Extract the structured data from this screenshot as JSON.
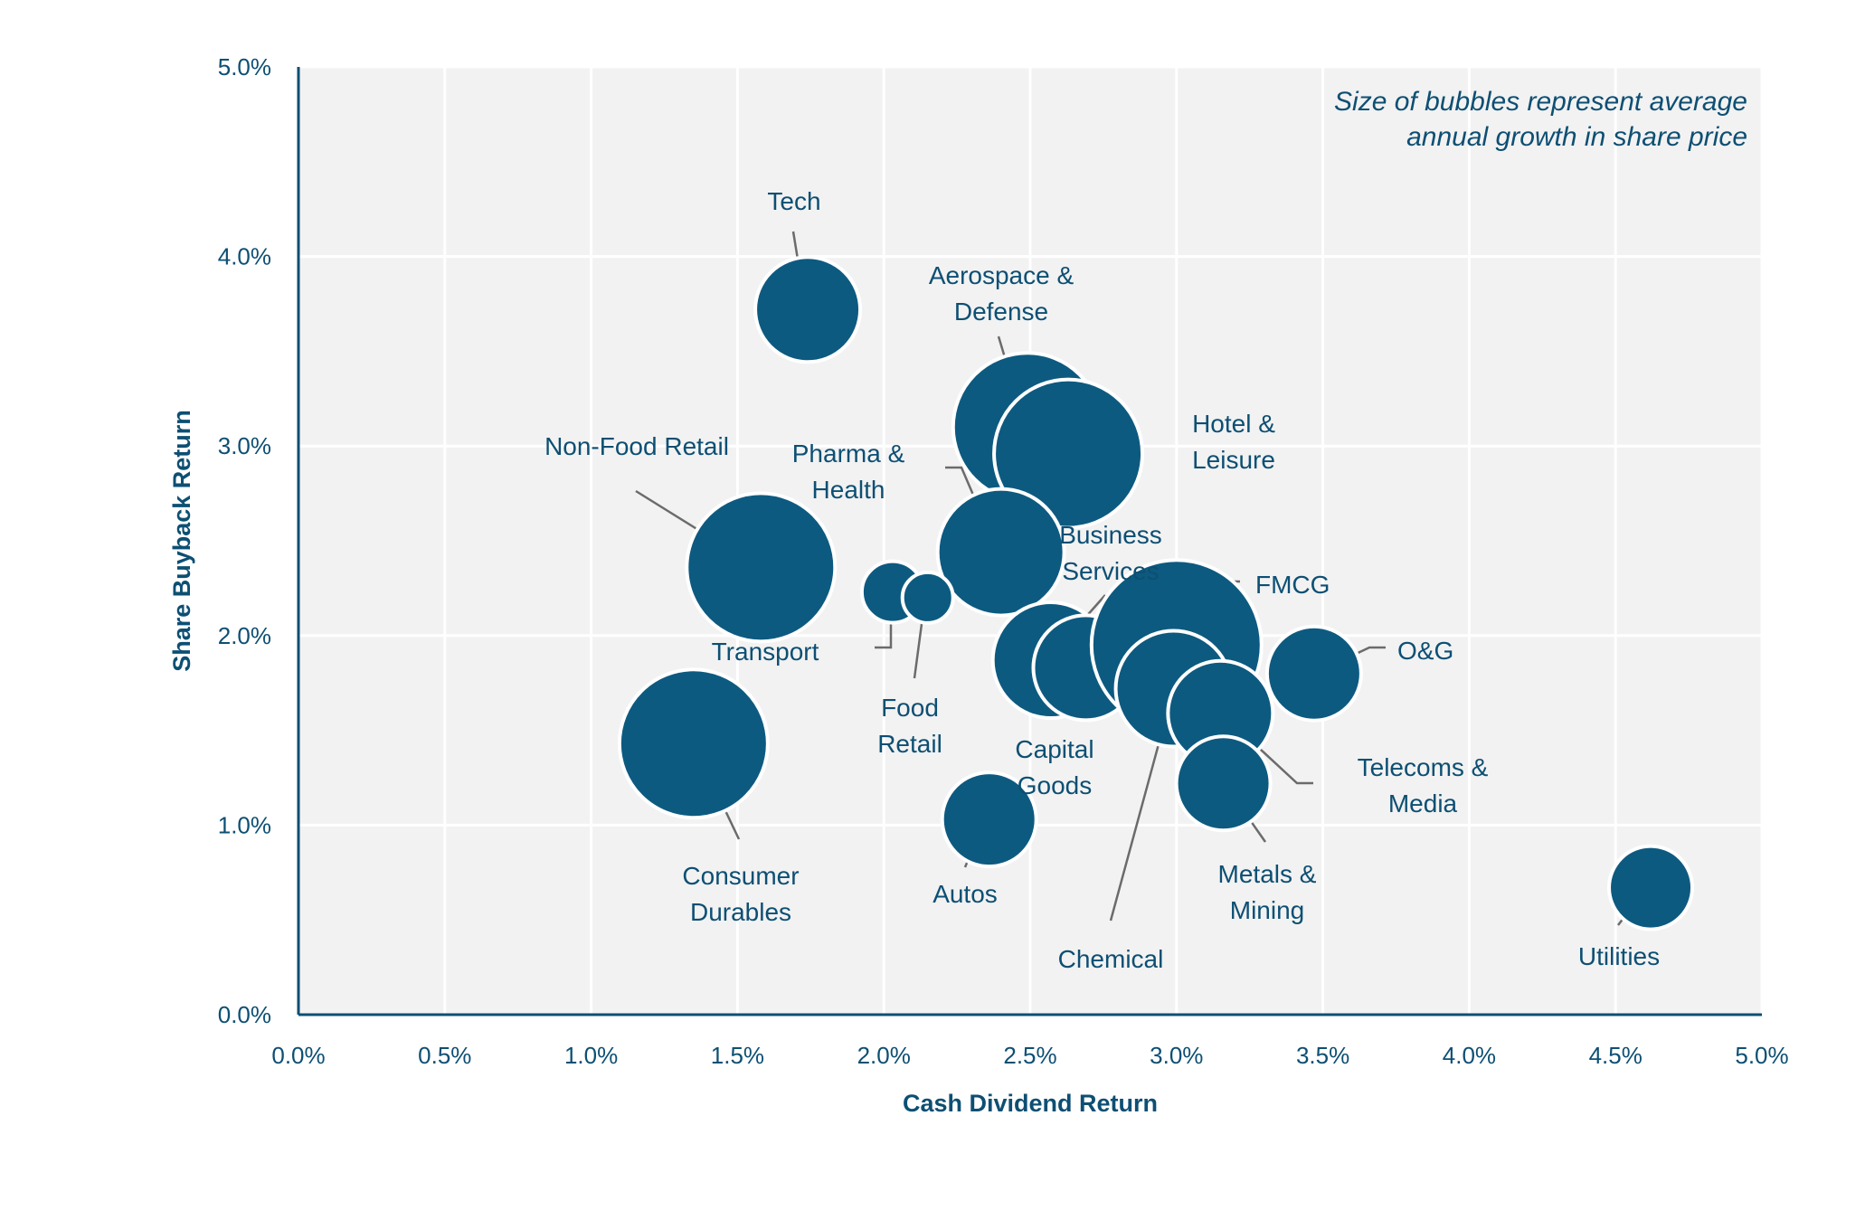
{
  "chart_data": {
    "type": "scatter",
    "title": "",
    "xlabel": "Cash Dividend Return",
    "ylabel": "Share Buyback Return",
    "xlim": [
      0,
      5
    ],
    "ylim": [
      0,
      5
    ],
    "x_unit": "%",
    "y_unit": "%",
    "x_ticks": [
      "0.0%",
      "0.5%",
      "1.0%",
      "1.5%",
      "2.0%",
      "2.5%",
      "3.0%",
      "3.5%",
      "4.0%",
      "4.5%",
      "5.0%"
    ],
    "y_ticks": [
      "0.0%",
      "1.0%",
      "2.0%",
      "3.0%",
      "4.0%",
      "5.0%"
    ],
    "grid": true,
    "annotation": [
      "Size of bubbles represent average",
      "annual growth in share price"
    ],
    "colors": {
      "bubble": "#0d5a80",
      "text": "#0d4f73",
      "plot_bg": "#f2f2f2",
      "leader": "#6b6b6b"
    },
    "points": [
      {
        "label": [
          "Tech"
        ],
        "x": 1.74,
        "y": 3.72,
        "size": 3
      },
      {
        "label": [
          "Aerospace &",
          "Defense"
        ],
        "x": 2.49,
        "y": 3.1,
        "size": 5
      },
      {
        "label": [
          "Hotel &",
          "Leisure"
        ],
        "x": 2.63,
        "y": 2.96,
        "size": 5
      },
      {
        "label": [
          "Non-Food Retail"
        ],
        "x": 1.58,
        "y": 2.36,
        "size": 5
      },
      {
        "label": [
          "Pharma &",
          "Health"
        ],
        "x": 2.4,
        "y": 2.44,
        "size": 4
      },
      {
        "label": [
          "Transport"
        ],
        "x": 2.03,
        "y": 2.23,
        "size": 1
      },
      {
        "label": [
          "Food",
          "Retail"
        ],
        "x": 2.15,
        "y": 2.2,
        "size": 0.5
      },
      {
        "label": [
          "Business",
          "Services"
        ],
        "x": 2.57,
        "y": 1.87,
        "size": 3.5
      },
      {
        "label": [
          "Capital",
          "Goods"
        ],
        "x": 2.69,
        "y": 1.83,
        "size": 3
      },
      {
        "label": [
          "FMCG"
        ],
        "x": 3.0,
        "y": 1.95,
        "size": 6
      },
      {
        "label": [
          "Chemical"
        ],
        "x": 2.99,
        "y": 1.72,
        "size": 3.5
      },
      {
        "label": [
          "O&G"
        ],
        "x": 3.47,
        "y": 1.8,
        "size": 2.5
      },
      {
        "label": [
          "Telecoms &",
          "Media"
        ],
        "x": 3.15,
        "y": 1.59,
        "size": 3
      },
      {
        "label": [
          "Metals &",
          "Mining"
        ],
        "x": 3.16,
        "y": 1.22,
        "size": 2.5
      },
      {
        "label": [
          "Consumer",
          "Durables"
        ],
        "x": 1.35,
        "y": 1.43,
        "size": 5
      },
      {
        "label": [
          "Autos"
        ],
        "x": 2.36,
        "y": 1.03,
        "size": 2.5
      },
      {
        "label": [
          "Utilities"
        ],
        "x": 4.62,
        "y": 0.67,
        "size": 2
      }
    ]
  }
}
